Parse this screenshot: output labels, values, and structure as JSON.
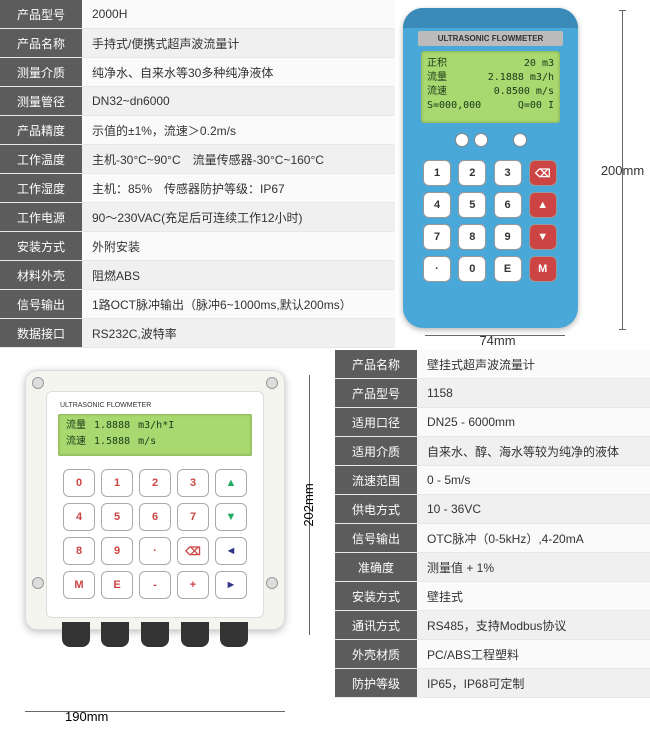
{
  "device1": {
    "title": "ULTRASONIC FLOWMETER",
    "screen": {
      "r1_l": "正积",
      "r1_r": "20 m3",
      "r2_l": "流量",
      "r2_r": "2.1888 m3/h",
      "r3_l": "流速",
      "r3_r": "0.8500 m/s",
      "r4_l": "S=000,000",
      "r4_r": "Q=00 I"
    },
    "keys": [
      "1",
      "2",
      "3",
      "⌫",
      "4",
      "5",
      "6",
      "▲",
      "7",
      "8",
      "9",
      "▼",
      "·",
      "0",
      "E",
      "M"
    ],
    "dim_h": "74mm",
    "dim_v": "200mm"
  },
  "table1": [
    {
      "label": "产品型号",
      "value": "2000H"
    },
    {
      "label": "产品名称",
      "value": "手持式/便携式超声波流量计"
    },
    {
      "label": "测量介质",
      "value": "纯净水、自来水等30多种纯净液体"
    },
    {
      "label": "测量管径",
      "value": "DN32~dn6000"
    },
    {
      "label": "产品精度",
      "value": "示值的±1%，流速＞0.2m/s"
    },
    {
      "label": "工作温度",
      "value": "主机-30°C~90°C　流量传感器-30°C~160°C"
    },
    {
      "label": "工作湿度",
      "value": "主机：85%　传感器防护等级：IP67"
    },
    {
      "label": "工作电源",
      "value": "90～230VAC(充足后可连续工作12小时)"
    },
    {
      "label": "安装方式",
      "value": "外附安装"
    },
    {
      "label": "材料外壳",
      "value": "阻燃ABS"
    },
    {
      "label": "信号输出",
      "value": "1路OCT脉冲输出（脉冲6~1000ms,默认200ms）"
    },
    {
      "label": "数据接口",
      "value": "RS232C,波特率"
    }
  ],
  "device2": {
    "title": "ULTRASONIC FLOWMETER",
    "screen": {
      "r1_l": "流量",
      "r1_v": "1.8888",
      "r1_u": "m3/h*I",
      "r2_l": "流速",
      "r2_v": "1.5888",
      "r2_u": "m/s"
    },
    "keys": [
      "0",
      "1",
      "2",
      "3",
      "▲",
      "4",
      "5",
      "6",
      "7",
      "▼",
      "8",
      "9",
      "·",
      "⌫",
      "◄",
      "M",
      "E",
      "-",
      "+",
      "►"
    ],
    "dim_h": "190mm",
    "dim_v": "202mm"
  },
  "table2": [
    {
      "label": "产品名称",
      "value": "壁挂式超声波流量计"
    },
    {
      "label": "产品型号",
      "value": "1158"
    },
    {
      "label": "适用口径",
      "value": "DN25 - 6000mm"
    },
    {
      "label": "适用介质",
      "value": "自来水、醇、海水等较为纯净的液体"
    },
    {
      "label": "流速范围",
      "value": "0 - 5m/s"
    },
    {
      "label": "供电方式",
      "value": "10 - 36VC"
    },
    {
      "label": "信号输出",
      "value": "OTC脉冲（0-5kHz）,4-20mA"
    },
    {
      "label": "准确度",
      "value": "测量值 + 1%"
    },
    {
      "label": "安装方式",
      "value": "壁挂式"
    },
    {
      "label": "通讯方式",
      "value": "RS485，支持Modbus协议"
    },
    {
      "label": "外壳材质",
      "value": "PC/ABS工程塑料"
    },
    {
      "label": "防护等级",
      "value": "IP65，IP68可定制"
    }
  ],
  "colors": {
    "label_bg": "#5c5c5c",
    "device_blue": "#4aa8d8",
    "screen_green": "#a8d86f",
    "key_red": "#c44"
  }
}
